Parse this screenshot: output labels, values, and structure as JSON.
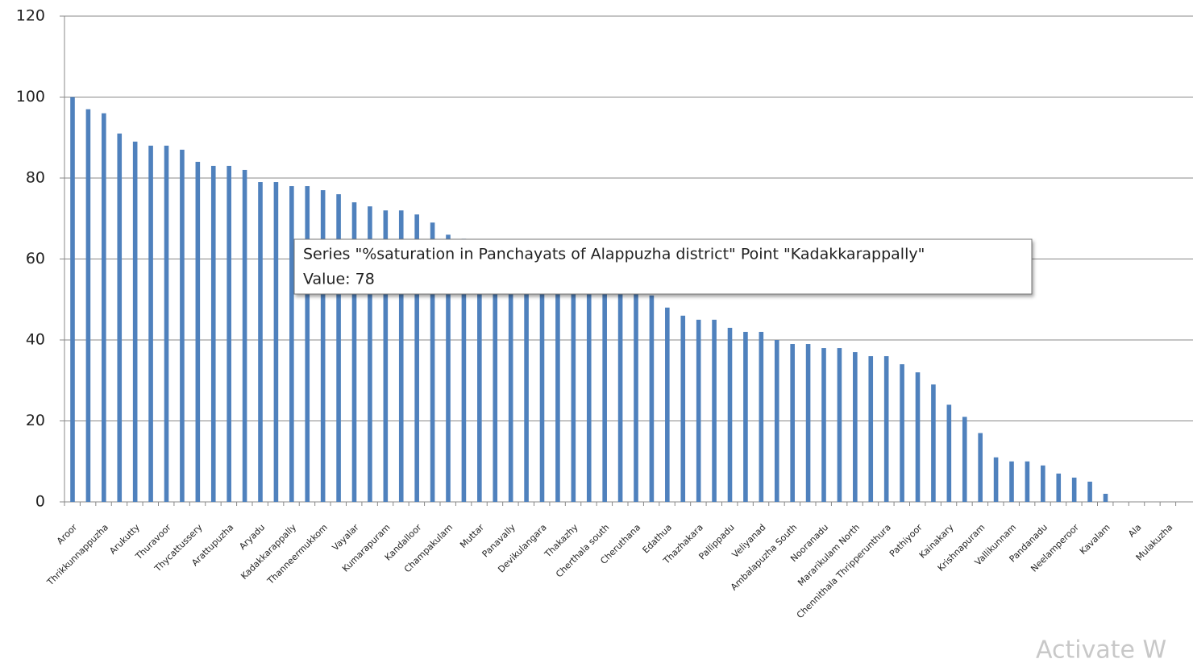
{
  "chart_data": {
    "type": "bar",
    "categories": [
      "Aroor",
      null,
      "Thrikkunnappuzha",
      null,
      "Arukutty",
      null,
      "Thuravoor",
      null,
      "Thycattussery",
      null,
      "Arattupuzha",
      null,
      "Aryadu",
      null,
      "Kadakkarappally",
      null,
      "Thanneermukkom",
      null,
      "Vayalar",
      null,
      "Kumarapuram",
      null,
      "Kandalloor",
      null,
      "Champakulam",
      null,
      "Muttar",
      null,
      "Panavally",
      null,
      "Devikulangara",
      null,
      "Thakazhy",
      null,
      "Cherthala south",
      null,
      "Cheruthana",
      null,
      "Edathua",
      null,
      "Thazhakara",
      null,
      "Pallippadu",
      null,
      "Veliyanad",
      null,
      "Ambalapuzha South",
      null,
      "Nooranadu",
      null,
      "Mararikulam North",
      null,
      "Chennithala Thripperunthura",
      null,
      "Pathiyoor",
      null,
      "Kainakary",
      null,
      "Krishnapuram",
      null,
      "Vallikunnam",
      null,
      "Pandanadu",
      null,
      "Neelamperoor",
      null,
      "Kavalam",
      null,
      "Ala",
      null,
      "Mulakuzha",
      null
    ],
    "values": [
      100,
      97,
      96,
      91,
      89,
      88,
      88,
      87,
      84,
      83,
      83,
      82,
      79,
      79,
      78,
      78,
      77,
      76,
      74,
      73,
      72,
      72,
      71,
      69,
      66,
      65,
      64,
      63,
      62,
      61,
      60,
      59,
      58,
      57,
      56,
      55,
      53,
      51,
      48,
      46,
      45,
      45,
      43,
      42,
      42,
      40,
      39,
      39,
      38,
      38,
      37,
      36,
      36,
      34,
      32,
      29,
      24,
      21,
      17,
      11,
      10,
      10,
      9,
      7,
      6,
      5,
      2,
      0,
      0,
      0,
      0,
      0
    ],
    "color": "#4f81bd",
    "ylim": [
      0,
      120
    ],
    "yticks": [
      0,
      20,
      40,
      60,
      80,
      100,
      120
    ],
    "grid": true,
    "tooltip": [
      "Series \"%saturation in Panchayats of Alappuzha district\" Point \"Kadakkarappally\"",
      "Value: 78"
    ]
  },
  "watermark": "Activate W"
}
